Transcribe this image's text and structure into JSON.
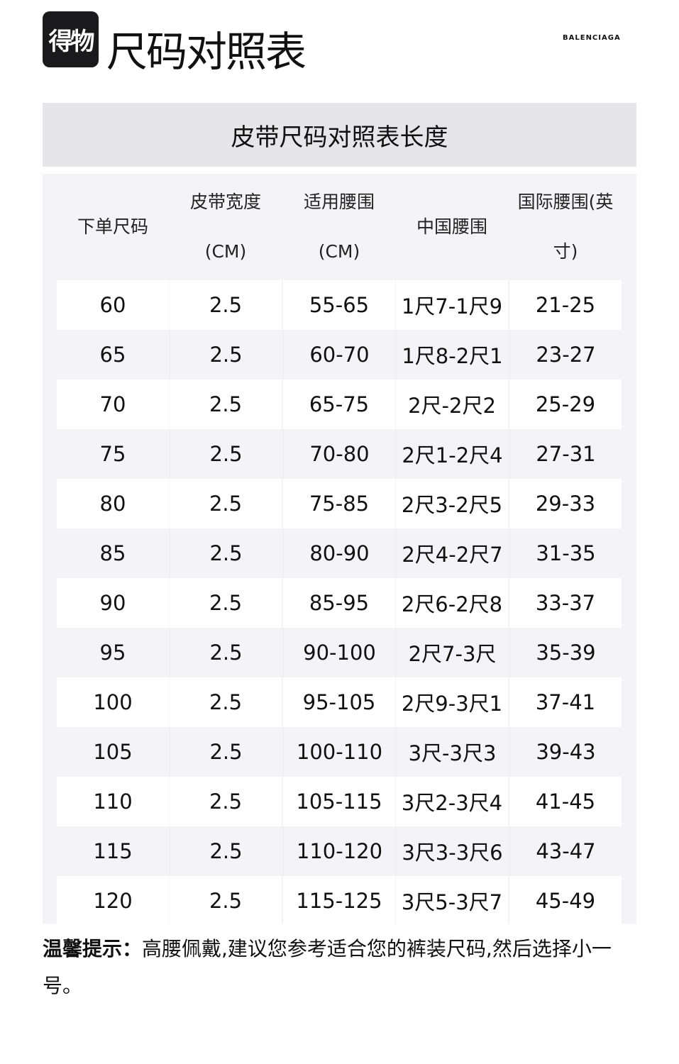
{
  "logo": "得物",
  "title": "尺码对照表",
  "brand": "BALENCIAGA",
  "table_title": "皮带尺码对照表长度",
  "headers": [
    [
      "下单尺码"
    ],
    [
      "皮带宽度",
      "(CM)"
    ],
    [
      "适用腰围",
      "(CM)"
    ],
    [
      "中国腰围"
    ],
    [
      "国际腰围(英",
      "寸)"
    ]
  ],
  "rows": [
    [
      "60",
      "2.5",
      "55-65",
      "1尺7-1尺9",
      "21-25"
    ],
    [
      "65",
      "2.5",
      "60-70",
      "1尺8-2尺1",
      "23-27"
    ],
    [
      "70",
      "2.5",
      "65-75",
      "2尺-2尺2",
      "25-29"
    ],
    [
      "75",
      "2.5",
      "70-80",
      "2尺1-2尺4",
      "27-31"
    ],
    [
      "80",
      "2.5",
      "75-85",
      "2尺3-2尺5",
      "29-33"
    ],
    [
      "85",
      "2.5",
      "80-90",
      "2尺4-2尺7",
      "31-35"
    ],
    [
      "90",
      "2.5",
      "85-95",
      "2尺6-2尺8",
      "33-37"
    ],
    [
      "95",
      "2.5",
      "90-100",
      "2尺7-3尺",
      "35-39"
    ],
    [
      "100",
      "2.5",
      "95-105",
      "2尺9-3尺1",
      "37-41"
    ],
    [
      "105",
      "2.5",
      "100-110",
      "3尺-3尺3",
      "39-43"
    ],
    [
      "110",
      "2.5",
      "105-115",
      "3尺2-3尺4",
      "41-45"
    ],
    [
      "115",
      "2.5",
      "110-120",
      "3尺3-3尺6",
      "43-47"
    ],
    [
      "120",
      "2.5",
      "115-125",
      "3尺5-3尺7",
      "45-49"
    ]
  ],
  "note": {
    "label": "温馨提示：",
    "text": "高腰佩戴,建议您参考适合您的裤装尺码,然后选择小一号。"
  }
}
